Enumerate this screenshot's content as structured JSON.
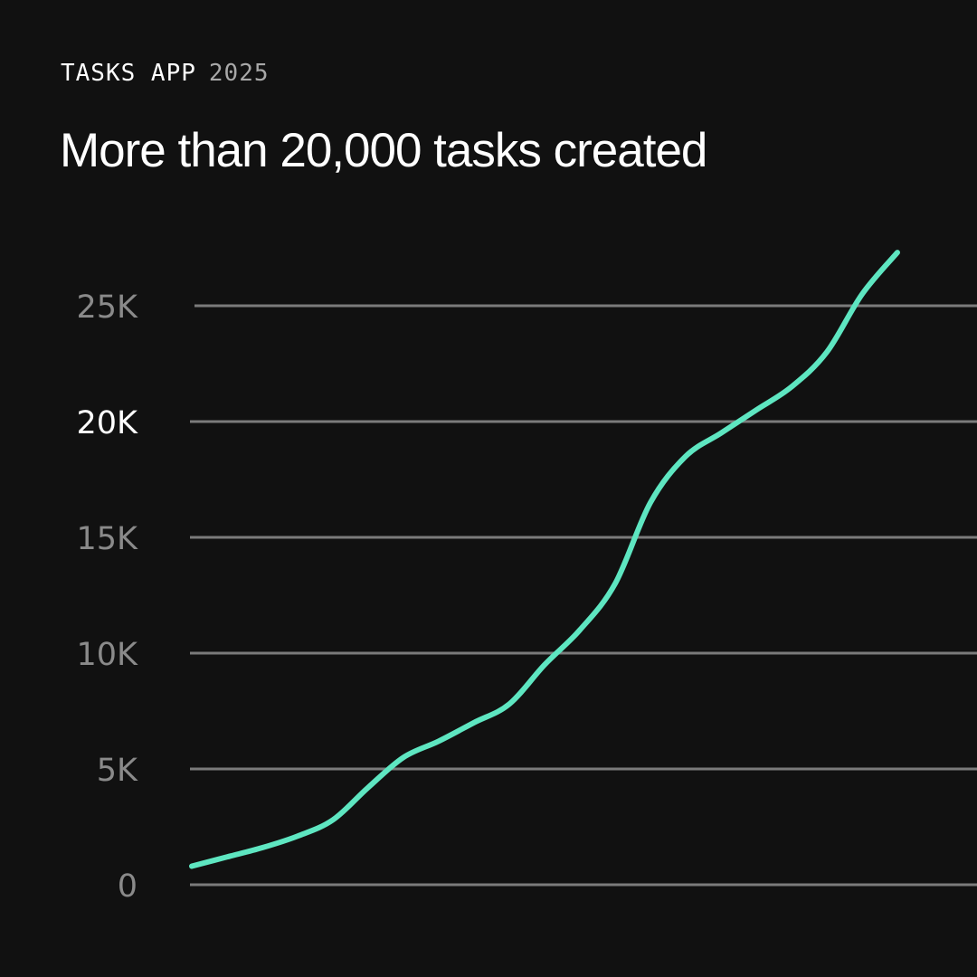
{
  "header": {
    "app_label": "TASKS APP",
    "year": "2025",
    "title": "More than 20,000 tasks created"
  },
  "colors": {
    "background": "#111111",
    "line": "#5ee6c1",
    "grid": "#7b7b7b",
    "tick_muted": "#8a8a8a",
    "tick_highlight": "#ffffff"
  },
  "chart_data": {
    "type": "line",
    "title": "More than 20,000 tasks created",
    "xlabel": "",
    "ylabel": "",
    "ylim": [
      0,
      25000
    ],
    "grid": true,
    "yticks": [
      {
        "value": 0,
        "label": "0",
        "highlight": false
      },
      {
        "value": 5000,
        "label": "5K",
        "highlight": false
      },
      {
        "value": 10000,
        "label": "10K",
        "highlight": false
      },
      {
        "value": 15000,
        "label": "15K",
        "highlight": false
      },
      {
        "value": 20000,
        "label": "20K",
        "highlight": true
      },
      {
        "value": 25000,
        "label": "25K",
        "highlight": false
      }
    ],
    "series": [
      {
        "values": [
          800,
          1200,
          1600,
          2100,
          2800,
          4200,
          5500,
          6200,
          7000,
          7800,
          9500,
          11000,
          13000,
          16500,
          18500,
          19500,
          20500,
          21500,
          23000,
          25500,
          27300
        ]
      }
    ]
  }
}
